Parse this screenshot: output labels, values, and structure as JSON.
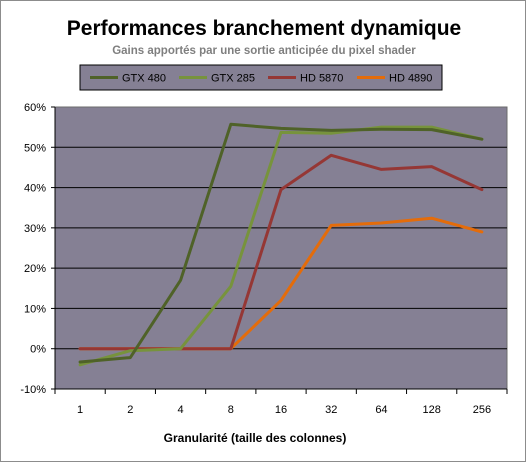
{
  "chart_data": {
    "type": "line",
    "title": "Performances branchement dynamique",
    "subtitle": "Gains apportés par une sortie anticipée du pixel shader",
    "xlabel": "Granularité (taille des colonnes)",
    "ylabel": "",
    "categories": [
      "1",
      "2",
      "4",
      "8",
      "16",
      "32",
      "64",
      "128",
      "256"
    ],
    "y_tick_labels": [
      "-10%",
      "0%",
      "10%",
      "20%",
      "30%",
      "40%",
      "50%",
      "60%"
    ],
    "ylim": [
      -0.1,
      0.6
    ],
    "y_format": "percent",
    "grid": "horizontal",
    "legend_position": "top",
    "plot_background": "#858094",
    "series": [
      {
        "name": "GTX 480",
        "color": "#4f6228",
        "values": [
          -0.033,
          -0.022,
          0.17,
          0.557,
          0.547,
          0.542,
          0.545,
          0.544,
          0.52
        ]
      },
      {
        "name": "GTX 285",
        "color": "#77933c",
        "values": [
          -0.04,
          -0.005,
          0.0,
          0.155,
          0.537,
          0.535,
          0.55,
          0.55,
          0.52
        ]
      },
      {
        "name": "HD 5870",
        "color": "#953735",
        "values": [
          0.0,
          0.0,
          0.0,
          0.0,
          0.395,
          0.48,
          0.445,
          0.452,
          0.395
        ]
      },
      {
        "name": "HD 4890",
        "color": "#e46c0a",
        "values": [
          0.0,
          0.0,
          0.0,
          0.0,
          0.12,
          0.306,
          0.312,
          0.324,
          0.29
        ]
      }
    ]
  }
}
